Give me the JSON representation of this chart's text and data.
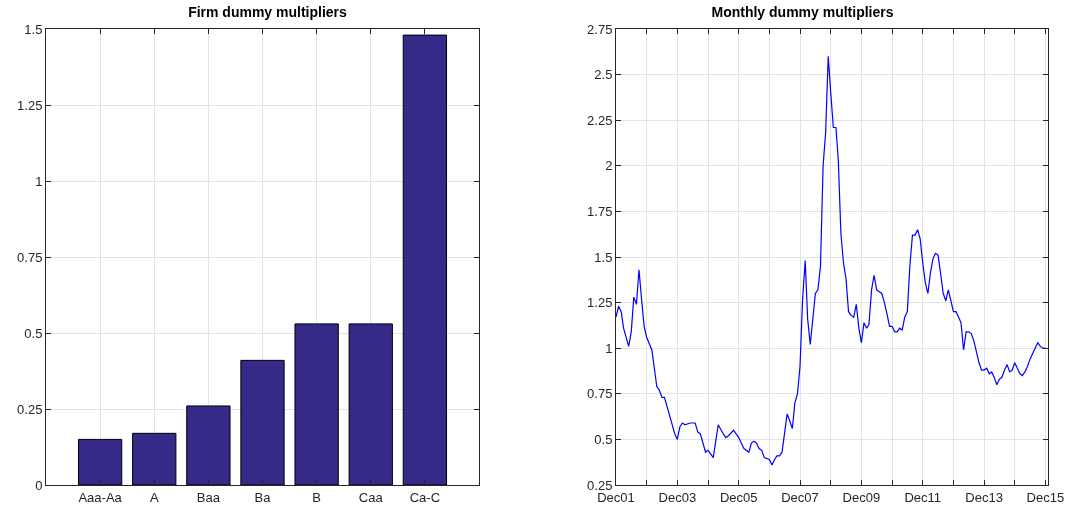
{
  "chart_data": [
    {
      "type": "bar",
      "title": "Firm dummy multipliers",
      "categories": [
        "Aaa-Aa",
        "A",
        "Baa",
        "Ba",
        "B",
        "Caa",
        "Ca-C"
      ],
      "values": [
        0.15,
        0.17,
        0.26,
        0.41,
        0.53,
        0.53,
        1.48
      ],
      "color": "#352a87",
      "ylim": [
        0,
        1.5
      ],
      "yticks": [
        0,
        0.25,
        0.5,
        0.75,
        1,
        1.25,
        1.5
      ],
      "grid": true
    },
    {
      "type": "line",
      "title": "Monthly dummy multipliers",
      "x": [
        "2001-12",
        "2002-01",
        "2002-02",
        "2002-03",
        "2002-05",
        "2002-06",
        "2002-07",
        "2002-08",
        "2002-09",
        "2002-10",
        "2002-11",
        "2002-12",
        "2003-02",
        "2003-04",
        "2003-05",
        "2003-06",
        "2003-07",
        "2003-09",
        "2003-11",
        "2003-12",
        "2004-01",
        "2004-02",
        "2004-03",
        "2004-05",
        "2004-07",
        "2004-08",
        "2004-09",
        "2004-11",
        "2004-12",
        "2005-02",
        "2005-04",
        "2005-06",
        "2005-07",
        "2005-08",
        "2005-10",
        "2005-12",
        "2006-02",
        "2006-04",
        "2006-05",
        "2006-06",
        "2006-07",
        "2006-08",
        "2006-09",
        "2006-10",
        "2006-12",
        "2007-01",
        "2007-02",
        "2007-03",
        "2007-04",
        "2007-05",
        "2007-07",
        "2007-09",
        "2007-10",
        "2007-11",
        "2007-12",
        "2008-01",
        "2008-02",
        "2008-03",
        "2008-04",
        "2008-06",
        "2008-07",
        "2008-08",
        "2008-09",
        "2008-10",
        "2008-11",
        "2008-12",
        "2009-01",
        "2009-02",
        "2009-03",
        "2009-04",
        "2009-05",
        "2009-06",
        "2009-07",
        "2009-08",
        "2009-09",
        "2009-10",
        "2009-11",
        "2009-12",
        "2010-01",
        "2010-02",
        "2010-03",
        "2010-04",
        "2010-05",
        "2010-06",
        "2010-07",
        "2010-08",
        "2010-09",
        "2010-10",
        "2010-11",
        "2010-12",
        "2011-01",
        "2011-02",
        "2011-03",
        "2011-04",
        "2011-05",
        "2011-06",
        "2011-07",
        "2011-08",
        "2011-09",
        "2011-10",
        "2011-11",
        "2011-12",
        "2012-01",
        "2012-02",
        "2012-03",
        "2012-04",
        "2012-05",
        "2012-06",
        "2012-07",
        "2012-08",
        "2012-09",
        "2012-10",
        "2012-11",
        "2012-12",
        "2013-01",
        "2013-02",
        "2013-03",
        "2013-04",
        "2013-05",
        "2013-06",
        "2013-07",
        "2013-08",
        "2013-09",
        "2013-10",
        "2013-11",
        "2013-12",
        "2014-01",
        "2014-02",
        "2014-03",
        "2014-04",
        "2014-05",
        "2014-06",
        "2014-07",
        "2014-08",
        "2014-09",
        "2014-10",
        "2014-11",
        "2014-12",
        "2015-01",
        "2015-02",
        "2015-03",
        "2015-04",
        "2015-05",
        "2015-06",
        "2015-07",
        "2015-08",
        "2015-09",
        "2015-10",
        "2015-11",
        "2015-12"
      ],
      "values": [
        1.17,
        1.23,
        1.2,
        1.11,
        1.01,
        1.09,
        1.28,
        1.24,
        1.43,
        1.27,
        1.12,
        1.06,
        0.99,
        0.79,
        0.77,
        0.73,
        0.73,
        0.63,
        0.53,
        0.5,
        0.57,
        0.59,
        0.58,
        0.59,
        0.59,
        0.54,
        0.53,
        0.43,
        0.44,
        0.4,
        0.58,
        0.53,
        0.51,
        0.52,
        0.55,
        0.51,
        0.45,
        0.43,
        0.48,
        0.49,
        0.48,
        0.45,
        0.44,
        0.4,
        0.39,
        0.36,
        0.39,
        0.41,
        0.41,
        0.43,
        0.64,
        0.56,
        0.7,
        0.75,
        0.9,
        1.27,
        1.48,
        1.16,
        1.02,
        1.3,
        1.32,
        1.45,
        2,
        2.18,
        2.6,
        2.4,
        2.21,
        2.21,
        2.03,
        1.63,
        1.47,
        1.38,
        1.2,
        1.18,
        1.17,
        1.24,
        1.11,
        1.03,
        1.14,
        1.11,
        1.13,
        1.32,
        1.4,
        1.32,
        1.31,
        1.3,
        1.25,
        1.19,
        1.12,
        1.12,
        1.09,
        1.09,
        1.11,
        1.1,
        1.17,
        1.2,
        1.45,
        1.62,
        1.62,
        1.65,
        1.6,
        1.47,
        1.36,
        1.3,
        1.41,
        1.49,
        1.52,
        1.51,
        1.41,
        1.3,
        1.26,
        1.32,
        1.26,
        1.2,
        1.2,
        1.17,
        1.14,
        0.99,
        1.09,
        1.09,
        1.08,
        1.04,
        0.98,
        0.92,
        0.88,
        0.88,
        0.89,
        0.86,
        0.87,
        0.84,
        0.8,
        0.83,
        0.84,
        0.88,
        0.91,
        0.87,
        0.88,
        0.92,
        0.89,
        0.86,
        0.85,
        0.87,
        0.9,
        0.94,
        0.97,
        1,
        1.03,
        1.01,
        1,
        1
      ],
      "color": "#0000ff",
      "xlim": [
        "2001-12",
        "2016-01"
      ],
      "xticks": [
        {
          "value": "2001-12",
          "label": "Dec01"
        },
        {
          "value": "2002-12",
          "label": null
        },
        {
          "value": "2003-12",
          "label": "Dec03"
        },
        {
          "value": "2004-12",
          "label": null
        },
        {
          "value": "2005-12",
          "label": "Dec05"
        },
        {
          "value": "2006-12",
          "label": null
        },
        {
          "value": "2007-12",
          "label": "Dec07"
        },
        {
          "value": "2008-12",
          "label": null
        },
        {
          "value": "2009-12",
          "label": "Dec09"
        },
        {
          "value": "2010-12",
          "label": null
        },
        {
          "value": "2011-12",
          "label": "Dec11"
        },
        {
          "value": "2012-12",
          "label": null
        },
        {
          "value": "2013-12",
          "label": "Dec13"
        },
        {
          "value": "2014-12",
          "label": null
        },
        {
          "value": "2015-12",
          "label": "Dec15"
        }
      ],
      "ylim": [
        0.25,
        2.75
      ],
      "yticks": [
        0.25,
        0.5,
        0.75,
        1,
        1.25,
        1.5,
        1.75,
        2,
        2.25,
        2.5,
        2.75
      ],
      "grid": true
    }
  ]
}
